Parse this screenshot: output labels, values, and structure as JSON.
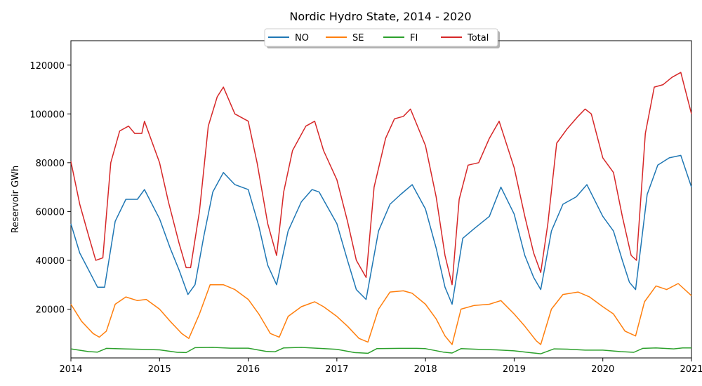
{
  "chart_data": {
    "type": "line",
    "title": "Nordic Hydro State, 2014 - 2020",
    "xlabel": "",
    "ylabel": "Reservoir GWh",
    "xlim": [
      2014,
      2021
    ],
    "ylim": [
      0,
      130000
    ],
    "x_ticks": [
      2014,
      2015,
      2016,
      2017,
      2018,
      2019,
      2020,
      2021
    ],
    "y_ticks": [
      20000,
      40000,
      60000,
      80000,
      100000,
      120000
    ],
    "grid": false,
    "legend": {
      "placement": "top-center",
      "entries": [
        "NO",
        "SE",
        "FI",
        "Total"
      ]
    },
    "series": [
      {
        "name": "NO",
        "color": "#1f77b4",
        "points": [
          [
            2014.0,
            55000
          ],
          [
            2014.1,
            43000
          ],
          [
            2014.2,
            36000
          ],
          [
            2014.3,
            29000
          ],
          [
            2014.38,
            29000
          ],
          [
            2014.5,
            56000
          ],
          [
            2014.62,
            65000
          ],
          [
            2014.75,
            65000
          ],
          [
            2014.83,
            69000
          ],
          [
            2015.0,
            57000
          ],
          [
            2015.12,
            45000
          ],
          [
            2015.22,
            36000
          ],
          [
            2015.32,
            26000
          ],
          [
            2015.4,
            30000
          ],
          [
            2015.5,
            50000
          ],
          [
            2015.6,
            68000
          ],
          [
            2015.72,
            76000
          ],
          [
            2015.85,
            71000
          ],
          [
            2016.0,
            69000
          ],
          [
            2016.12,
            54000
          ],
          [
            2016.22,
            38000
          ],
          [
            2016.32,
            30000
          ],
          [
            2016.45,
            52000
          ],
          [
            2016.6,
            64000
          ],
          [
            2016.72,
            69000
          ],
          [
            2016.8,
            68000
          ],
          [
            2017.0,
            55000
          ],
          [
            2017.12,
            40000
          ],
          [
            2017.22,
            28000
          ],
          [
            2017.33,
            24000
          ],
          [
            2017.47,
            52000
          ],
          [
            2017.6,
            63000
          ],
          [
            2017.72,
            67000
          ],
          [
            2017.85,
            71000
          ],
          [
            2018.0,
            61000
          ],
          [
            2018.12,
            45000
          ],
          [
            2018.22,
            29000
          ],
          [
            2018.3,
            22000
          ],
          [
            2018.42,
            49000
          ],
          [
            2018.55,
            53000
          ],
          [
            2018.72,
            58000
          ],
          [
            2018.85,
            70000
          ],
          [
            2019.0,
            59000
          ],
          [
            2019.12,
            42000
          ],
          [
            2019.22,
            33000
          ],
          [
            2019.3,
            28000
          ],
          [
            2019.42,
            52000
          ],
          [
            2019.55,
            63000
          ],
          [
            2019.7,
            66000
          ],
          [
            2019.82,
            71000
          ],
          [
            2020.0,
            58000
          ],
          [
            2020.12,
            52000
          ],
          [
            2020.22,
            40000
          ],
          [
            2020.3,
            31000
          ],
          [
            2020.37,
            28000
          ],
          [
            2020.5,
            67000
          ],
          [
            2020.62,
            79000
          ],
          [
            2020.75,
            82000
          ],
          [
            2020.88,
            83000
          ],
          [
            2021.0,
            70000
          ]
        ]
      },
      {
        "name": "SE",
        "color": "#ff7f0e",
        "points": [
          [
            2014.0,
            22000
          ],
          [
            2014.12,
            15000
          ],
          [
            2014.25,
            10000
          ],
          [
            2014.32,
            8500
          ],
          [
            2014.4,
            11000
          ],
          [
            2014.5,
            22000
          ],
          [
            2014.62,
            25000
          ],
          [
            2014.75,
            23500
          ],
          [
            2014.85,
            24000
          ],
          [
            2015.0,
            20000
          ],
          [
            2015.12,
            15000
          ],
          [
            2015.25,
            10000
          ],
          [
            2015.33,
            8000
          ],
          [
            2015.45,
            18000
          ],
          [
            2015.57,
            30000
          ],
          [
            2015.72,
            30000
          ],
          [
            2015.85,
            28000
          ],
          [
            2016.0,
            24000
          ],
          [
            2016.12,
            18000
          ],
          [
            2016.25,
            10000
          ],
          [
            2016.35,
            8500
          ],
          [
            2016.45,
            17000
          ],
          [
            2016.6,
            21000
          ],
          [
            2016.75,
            23000
          ],
          [
            2016.85,
            21000
          ],
          [
            2017.0,
            17000
          ],
          [
            2017.12,
            13000
          ],
          [
            2017.25,
            8000
          ],
          [
            2017.35,
            6500
          ],
          [
            2017.47,
            20000
          ],
          [
            2017.6,
            27000
          ],
          [
            2017.75,
            27500
          ],
          [
            2017.85,
            26500
          ],
          [
            2018.0,
            22000
          ],
          [
            2018.12,
            16000
          ],
          [
            2018.22,
            9000
          ],
          [
            2018.3,
            5500
          ],
          [
            2018.4,
            20000
          ],
          [
            2018.55,
            21500
          ],
          [
            2018.72,
            22000
          ],
          [
            2018.85,
            23500
          ],
          [
            2019.0,
            18000
          ],
          [
            2019.12,
            13000
          ],
          [
            2019.25,
            7000
          ],
          [
            2019.3,
            5500
          ],
          [
            2019.42,
            20000
          ],
          [
            2019.55,
            26000
          ],
          [
            2019.72,
            27000
          ],
          [
            2019.85,
            25000
          ],
          [
            2020.0,
            21000
          ],
          [
            2020.12,
            18000
          ],
          [
            2020.25,
            11000
          ],
          [
            2020.37,
            9000
          ],
          [
            2020.47,
            23000
          ],
          [
            2020.6,
            29500
          ],
          [
            2020.72,
            28000
          ],
          [
            2020.85,
            30500
          ],
          [
            2021.0,
            25500
          ]
        ]
      },
      {
        "name": "FI",
        "color": "#2ca02c",
        "points": [
          [
            2014.0,
            3700
          ],
          [
            2014.2,
            2600
          ],
          [
            2014.3,
            2400
          ],
          [
            2014.4,
            3900
          ],
          [
            2014.6,
            3700
          ],
          [
            2014.8,
            3500
          ],
          [
            2015.0,
            3300
          ],
          [
            2015.2,
            2300
          ],
          [
            2015.3,
            2200
          ],
          [
            2015.4,
            4200
          ],
          [
            2015.6,
            4300
          ],
          [
            2015.8,
            4000
          ],
          [
            2016.0,
            4000
          ],
          [
            2016.2,
            2700
          ],
          [
            2016.3,
            2500
          ],
          [
            2016.4,
            4100
          ],
          [
            2016.6,
            4300
          ],
          [
            2016.8,
            3900
          ],
          [
            2017.0,
            3500
          ],
          [
            2017.2,
            2200
          ],
          [
            2017.35,
            1900
          ],
          [
            2017.45,
            3800
          ],
          [
            2017.7,
            3900
          ],
          [
            2017.9,
            3900
          ],
          [
            2018.0,
            3800
          ],
          [
            2018.2,
            2400
          ],
          [
            2018.3,
            2000
          ],
          [
            2018.4,
            3800
          ],
          [
            2018.6,
            3500
          ],
          [
            2018.8,
            3300
          ],
          [
            2019.0,
            2900
          ],
          [
            2019.2,
            2100
          ],
          [
            2019.3,
            1700
          ],
          [
            2019.45,
            3700
          ],
          [
            2019.6,
            3600
          ],
          [
            2019.8,
            3200
          ],
          [
            2020.0,
            3200
          ],
          [
            2020.2,
            2600
          ],
          [
            2020.35,
            2300
          ],
          [
            2020.45,
            3900
          ],
          [
            2020.6,
            4100
          ],
          [
            2020.8,
            3700
          ],
          [
            2020.9,
            4100
          ],
          [
            2021.0,
            4100
          ]
        ]
      },
      {
        "name": "Total",
        "color": "#d62728",
        "points": [
          [
            2014.0,
            80500
          ],
          [
            2014.1,
            63000
          ],
          [
            2014.2,
            50000
          ],
          [
            2014.28,
            40000
          ],
          [
            2014.36,
            41000
          ],
          [
            2014.45,
            80000
          ],
          [
            2014.55,
            93000
          ],
          [
            2014.65,
            95000
          ],
          [
            2014.72,
            92000
          ],
          [
            2014.8,
            92000
          ],
          [
            2014.83,
            97000
          ],
          [
            2015.0,
            80000
          ],
          [
            2015.1,
            64000
          ],
          [
            2015.22,
            47000
          ],
          [
            2015.3,
            37000
          ],
          [
            2015.35,
            37000
          ],
          [
            2015.45,
            60000
          ],
          [
            2015.55,
            95000
          ],
          [
            2015.65,
            107000
          ],
          [
            2015.72,
            111000
          ],
          [
            2015.85,
            100000
          ],
          [
            2016.0,
            97000
          ],
          [
            2016.1,
            80000
          ],
          [
            2016.22,
            55000
          ],
          [
            2016.32,
            42000
          ],
          [
            2016.4,
            68000
          ],
          [
            2016.5,
            85000
          ],
          [
            2016.65,
            95000
          ],
          [
            2016.75,
            97000
          ],
          [
            2016.85,
            85000
          ],
          [
            2017.0,
            73000
          ],
          [
            2017.12,
            56000
          ],
          [
            2017.22,
            40000
          ],
          [
            2017.33,
            33000
          ],
          [
            2017.42,
            70000
          ],
          [
            2017.55,
            90000
          ],
          [
            2017.65,
            98000
          ],
          [
            2017.75,
            99000
          ],
          [
            2017.83,
            102000
          ],
          [
            2018.0,
            87000
          ],
          [
            2018.12,
            66000
          ],
          [
            2018.22,
            42000
          ],
          [
            2018.3,
            30000
          ],
          [
            2018.38,
            65000
          ],
          [
            2018.48,
            79000
          ],
          [
            2018.6,
            80000
          ],
          [
            2018.72,
            90000
          ],
          [
            2018.83,
            97000
          ],
          [
            2019.0,
            78000
          ],
          [
            2019.12,
            58000
          ],
          [
            2019.22,
            43000
          ],
          [
            2019.3,
            35000
          ],
          [
            2019.38,
            55000
          ],
          [
            2019.48,
            88000
          ],
          [
            2019.6,
            94000
          ],
          [
            2019.72,
            99000
          ],
          [
            2019.8,
            102000
          ],
          [
            2019.87,
            100000
          ],
          [
            2020.0,
            82000
          ],
          [
            2020.12,
            76000
          ],
          [
            2020.22,
            58000
          ],
          [
            2020.32,
            42000
          ],
          [
            2020.38,
            40000
          ],
          [
            2020.48,
            92000
          ],
          [
            2020.58,
            111000
          ],
          [
            2020.68,
            112000
          ],
          [
            2020.78,
            115000
          ],
          [
            2020.88,
            117000
          ],
          [
            2021.0,
            100000
          ]
        ]
      }
    ]
  }
}
